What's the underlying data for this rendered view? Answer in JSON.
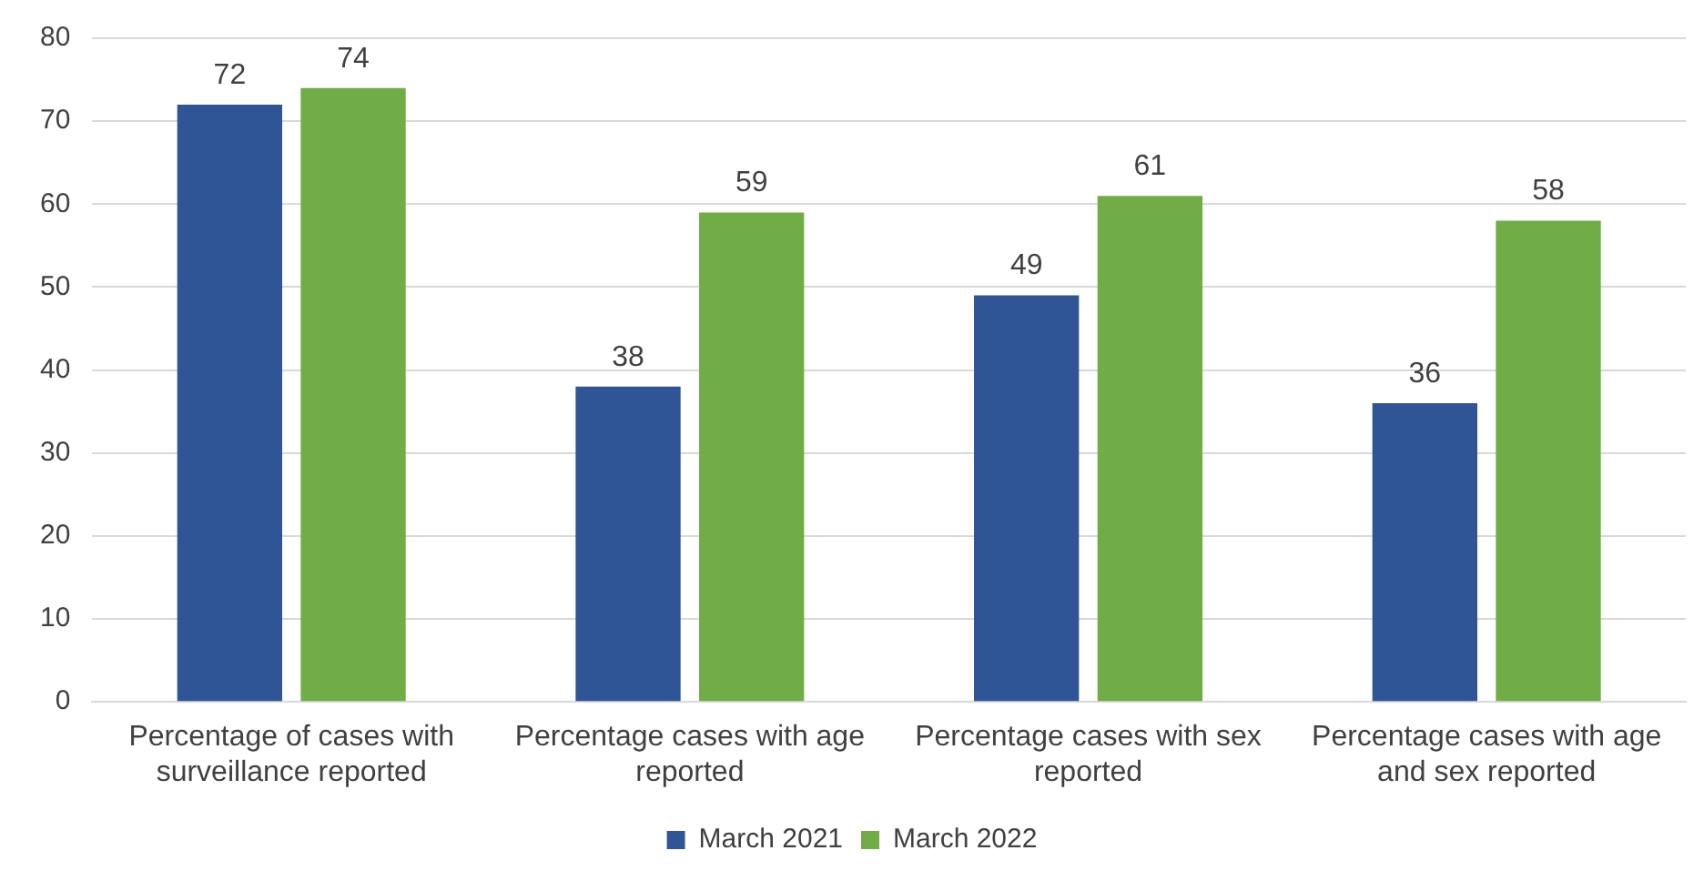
{
  "chart_data": {
    "type": "bar",
    "categories": [
      "Percentage of cases with surveillance reported",
      "Percentage cases with age reported",
      "Percentage cases with sex reported",
      "Percentage cases with age and sex reported"
    ],
    "series": [
      {
        "name": "March 2021",
        "color": "#2f5597",
        "values": [
          72,
          38,
          49,
          36
        ]
      },
      {
        "name": "March 2022",
        "color": "#70ad47",
        "values": [
          74,
          59,
          61,
          58
        ]
      }
    ],
    "ylim": [
      0,
      80
    ],
    "yticks": [
      0,
      10,
      20,
      30,
      40,
      50,
      60,
      70,
      80
    ],
    "grid": "y",
    "legend": "bottom",
    "data_labels": true
  }
}
